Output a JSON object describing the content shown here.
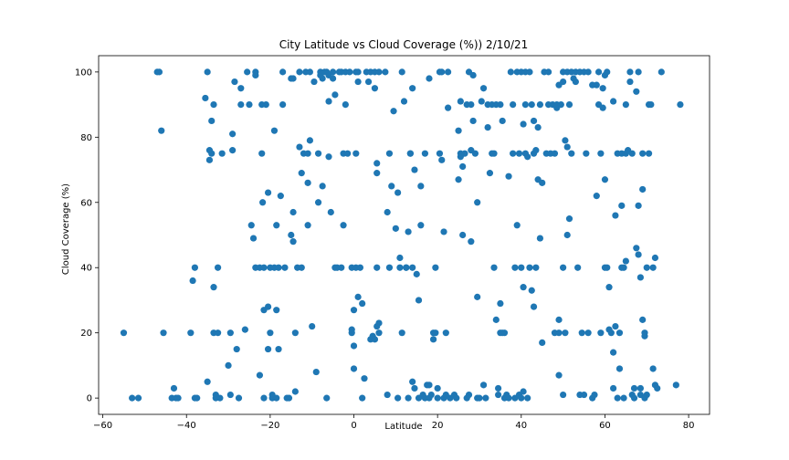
{
  "chart_data": {
    "type": "scatter",
    "title": "City Latitude vs Cloud Coverage (%)) 2/10/21",
    "xlabel": "Latitude",
    "ylabel": "Cloud Coverage (%)",
    "xlim": [
      -61,
      85
    ],
    "ylim": [
      -5,
      105
    ],
    "xticks": [
      -60,
      -40,
      -20,
      0,
      20,
      40,
      60,
      80
    ],
    "yticks": [
      0,
      20,
      40,
      60,
      80,
      100
    ],
    "grid": false,
    "legend": "none",
    "color": "#1f77b4",
    "points": [
      [
        -55,
        20
      ],
      [
        -53,
        0
      ],
      [
        -51.5,
        0
      ],
      [
        -47,
        100
      ],
      [
        -46.5,
        100
      ],
      [
        -46,
        82
      ],
      [
        -45.5,
        20
      ],
      [
        -43.5,
        0
      ],
      [
        -43,
        3
      ],
      [
        -42.5,
        0
      ],
      [
        -42,
        0
      ],
      [
        -39,
        20
      ],
      [
        -38.5,
        36
      ],
      [
        -38,
        40
      ],
      [
        -38,
        0
      ],
      [
        -37.5,
        0
      ],
      [
        -35.5,
        92
      ],
      [
        -35,
        5
      ],
      [
        -35,
        100
      ],
      [
        -34.5,
        76
      ],
      [
        -34.5,
        73
      ],
      [
        -34,
        85
      ],
      [
        -34,
        75
      ],
      [
        -33.5,
        90
      ],
      [
        -33.5,
        34
      ],
      [
        -33.5,
        20
      ],
      [
        -33,
        0
      ],
      [
        -33,
        1
      ],
      [
        -32.5,
        20
      ],
      [
        -32.5,
        40
      ],
      [
        -32,
        0
      ],
      [
        -31.5,
        75
      ],
      [
        -30,
        10
      ],
      [
        -29.5,
        1
      ],
      [
        -29.5,
        20
      ],
      [
        -29,
        76
      ],
      [
        -29,
        81
      ],
      [
        -28.5,
        97
      ],
      [
        -28,
        15
      ],
      [
        -27.5,
        0
      ],
      [
        -27,
        90
      ],
      [
        -27,
        95
      ],
      [
        -26,
        21
      ],
      [
        -25.5,
        100
      ],
      [
        -25,
        90
      ],
      [
        -24.5,
        53
      ],
      [
        -24,
        49
      ],
      [
        -23.5,
        100
      ],
      [
        -23.5,
        99
      ],
      [
        -23.5,
        40
      ],
      [
        -22.5,
        7
      ],
      [
        -22.5,
        40
      ],
      [
        -22,
        90
      ],
      [
        -22,
        75
      ],
      [
        -21.8,
        60
      ],
      [
        -21.5,
        27
      ],
      [
        -21.5,
        0
      ],
      [
        -21.5,
        40
      ],
      [
        -21,
        90
      ],
      [
        -20.5,
        15
      ],
      [
        -20.5,
        28
      ],
      [
        -20.5,
        63
      ],
      [
        -20,
        20
      ],
      [
        -20,
        40
      ],
      [
        -19.5,
        0
      ],
      [
        -19.5,
        1
      ],
      [
        -19,
        40
      ],
      [
        -19,
        82
      ],
      [
        -18.5,
        53
      ],
      [
        -18.5,
        27
      ],
      [
        -18.5,
        0
      ],
      [
        -18,
        40
      ],
      [
        -18,
        15
      ],
      [
        -17.5,
        62
      ],
      [
        -17,
        100
      ],
      [
        -17,
        90
      ],
      [
        -16.5,
        40
      ],
      [
        -16,
        0
      ],
      [
        -15.5,
        0
      ],
      [
        -15,
        50
      ],
      [
        -15,
        98
      ],
      [
        -14.5,
        48
      ],
      [
        -14.5,
        57
      ],
      [
        -14.5,
        98
      ],
      [
        -14,
        2
      ],
      [
        -14,
        20
      ],
      [
        -13.5,
        40
      ],
      [
        -13,
        77
      ],
      [
        -13,
        100
      ],
      [
        -12.5,
        69
      ],
      [
        -12.5,
        40
      ],
      [
        -12,
        75
      ],
      [
        -11.5,
        100
      ],
      [
        -11,
        75
      ],
      [
        -11,
        66
      ],
      [
        -11,
        53
      ],
      [
        -10.5,
        79
      ],
      [
        -10.5,
        100
      ],
      [
        -10,
        22
      ],
      [
        -9.5,
        97
      ],
      [
        -9,
        8
      ],
      [
        -8.5,
        60
      ],
      [
        -8.5,
        75
      ],
      [
        -8,
        100
      ],
      [
        -8,
        99
      ],
      [
        -7.5,
        98
      ],
      [
        -7.5,
        65
      ],
      [
        -7,
        100
      ],
      [
        -6.5,
        100
      ],
      [
        -6.5,
        0
      ],
      [
        -6,
        91
      ],
      [
        -6,
        74
      ],
      [
        -6,
        99
      ],
      [
        -5.5,
        57
      ],
      [
        -5,
        100
      ],
      [
        -5,
        98
      ],
      [
        -4.5,
        40
      ],
      [
        -4.5,
        93
      ],
      [
        -4,
        40
      ],
      [
        -3.5,
        100
      ],
      [
        -3,
        40
      ],
      [
        -3,
        100
      ],
      [
        -2.5,
        53
      ],
      [
        -2.5,
        75
      ],
      [
        -2,
        100
      ],
      [
        -2,
        90
      ],
      [
        -1.5,
        75
      ],
      [
        -1,
        100
      ],
      [
        -0.5,
        40
      ],
      [
        -0.5,
        21
      ],
      [
        -0.5,
        20
      ],
      [
        0,
        16
      ],
      [
        0,
        27
      ],
      [
        0,
        9
      ],
      [
        0.5,
        75
      ],
      [
        0.5,
        100
      ],
      [
        0.5,
        40
      ],
      [
        1,
        97
      ],
      [
        1,
        31
      ],
      [
        1,
        100
      ],
      [
        1.5,
        40
      ],
      [
        2,
        29
      ],
      [
        2,
        0
      ],
      [
        2.5,
        6
      ],
      [
        3,
        100
      ],
      [
        3.5,
        97
      ],
      [
        4,
        100
      ],
      [
        4,
        18
      ],
      [
        4.5,
        19
      ],
      [
        5,
        95
      ],
      [
        5,
        100
      ],
      [
        5,
        18
      ],
      [
        5.5,
        22
      ],
      [
        5.5,
        40
      ],
      [
        5.5,
        69
      ],
      [
        5.5,
        72
      ],
      [
        6,
        100
      ],
      [
        6,
        23
      ],
      [
        6,
        20
      ],
      [
        7.5,
        100
      ],
      [
        8,
        57
      ],
      [
        8,
        1
      ],
      [
        8.5,
        75
      ],
      [
        8.5,
        40
      ],
      [
        9,
        65
      ],
      [
        9.5,
        88
      ],
      [
        10,
        52
      ],
      [
        10.5,
        0
      ],
      [
        10.5,
        63
      ],
      [
        11,
        43
      ],
      [
        11,
        40
      ],
      [
        11.5,
        20
      ],
      [
        11.5,
        100
      ],
      [
        12,
        91
      ],
      [
        12.5,
        40
      ],
      [
        12.5,
        40
      ],
      [
        13,
        51
      ],
      [
        13,
        0
      ],
      [
        13.5,
        75
      ],
      [
        13.5,
        75
      ],
      [
        14,
        95
      ],
      [
        14,
        5
      ],
      [
        14,
        40
      ],
      [
        14.5,
        70
      ],
      [
        14.5,
        3
      ],
      [
        15,
        38
      ],
      [
        15.5,
        30
      ],
      [
        15.5,
        0
      ],
      [
        16,
        65
      ],
      [
        16,
        53
      ],
      [
        16.5,
        1
      ],
      [
        17,
        75
      ],
      [
        17,
        0
      ],
      [
        17.5,
        4
      ],
      [
        18,
        4
      ],
      [
        18,
        0
      ],
      [
        18,
        98
      ],
      [
        18.5,
        1
      ],
      [
        19,
        20
      ],
      [
        19,
        18
      ],
      [
        19.5,
        20
      ],
      [
        19.5,
        40
      ],
      [
        20,
        0
      ],
      [
        20,
        3
      ],
      [
        20.5,
        75
      ],
      [
        20.5,
        100
      ],
      [
        21,
        73
      ],
      [
        21,
        100
      ],
      [
        21.5,
        51
      ],
      [
        21.5,
        0
      ],
      [
        22,
        20
      ],
      [
        22,
        1
      ],
      [
        22.5,
        89
      ],
      [
        22.5,
        100
      ],
      [
        23,
        0
      ],
      [
        24,
        1
      ],
      [
        24.5,
        0
      ],
      [
        25,
        67
      ],
      [
        25,
        82
      ],
      [
        25.5,
        91
      ],
      [
        25.5,
        75
      ],
      [
        25.5,
        74
      ],
      [
        26,
        50
      ],
      [
        26,
        71
      ],
      [
        26.5,
        75
      ],
      [
        27,
        90
      ],
      [
        27,
        0
      ],
      [
        27.5,
        1
      ],
      [
        27.5,
        100
      ],
      [
        28,
        90
      ],
      [
        28,
        76
      ],
      [
        28,
        48
      ],
      [
        28.5,
        99
      ],
      [
        28.5,
        85
      ],
      [
        29,
        75
      ],
      [
        29.5,
        0
      ],
      [
        29.5,
        31
      ],
      [
        29.5,
        60
      ],
      [
        30,
        0
      ],
      [
        30.5,
        91
      ],
      [
        31,
        95
      ],
      [
        31,
        4
      ],
      [
        31.5,
        0
      ],
      [
        32,
        90
      ],
      [
        32,
        83
      ],
      [
        32.5,
        69
      ],
      [
        33,
        75
      ],
      [
        33,
        90
      ],
      [
        33.5,
        75
      ],
      [
        33.5,
        40
      ],
      [
        34,
        90
      ],
      [
        34,
        24
      ],
      [
        34.5,
        3
      ],
      [
        34.5,
        1
      ],
      [
        35,
        29
      ],
      [
        35,
        20
      ],
      [
        35,
        90
      ],
      [
        35.5,
        85
      ],
      [
        35.5,
        20
      ],
      [
        36,
        20
      ],
      [
        36,
        0
      ],
      [
        36.5,
        1
      ],
      [
        37,
        0
      ],
      [
        37,
        68
      ],
      [
        37.5,
        100
      ],
      [
        38,
        75
      ],
      [
        38,
        90
      ],
      [
        38.5,
        40
      ],
      [
        38.5,
        0
      ],
      [
        39,
        53
      ],
      [
        39,
        100
      ],
      [
        39.5,
        75
      ],
      [
        39.5,
        1
      ],
      [
        40,
        0
      ],
      [
        40,
        100
      ],
      [
        40,
        40
      ],
      [
        40.5,
        34
      ],
      [
        40.5,
        2
      ],
      [
        40.5,
        84
      ],
      [
        41,
        75
      ],
      [
        41,
        90
      ],
      [
        41,
        100
      ],
      [
        41.5,
        0
      ],
      [
        41.5,
        74
      ],
      [
        42,
        40
      ],
      [
        42,
        100
      ],
      [
        42.5,
        33
      ],
      [
        42.5,
        90
      ],
      [
        43,
        28
      ],
      [
        43,
        75
      ],
      [
        43,
        85
      ],
      [
        43.5,
        40
      ],
      [
        43.5,
        76
      ],
      [
        44,
        67
      ],
      [
        44,
        83
      ],
      [
        44.5,
        49
      ],
      [
        44.5,
        90
      ],
      [
        45,
        66
      ],
      [
        45,
        17
      ],
      [
        45.5,
        100
      ],
      [
        46,
        75
      ],
      [
        46.5,
        90
      ],
      [
        46.5,
        100
      ],
      [
        47,
        75
      ],
      [
        47.5,
        90
      ],
      [
        48,
        20
      ],
      [
        48,
        75
      ],
      [
        48.5,
        89
      ],
      [
        48.5,
        90
      ],
      [
        49,
        96
      ],
      [
        49,
        7
      ],
      [
        49,
        24
      ],
      [
        49,
        20
      ],
      [
        49.5,
        90
      ],
      [
        50,
        97
      ],
      [
        50,
        100
      ],
      [
        50,
        40
      ],
      [
        50,
        1
      ],
      [
        50.5,
        79
      ],
      [
        50.5,
        20
      ],
      [
        51,
        77
      ],
      [
        51,
        100
      ],
      [
        51,
        50
      ],
      [
        51.5,
        55
      ],
      [
        51.5,
        90
      ],
      [
        52,
        100
      ],
      [
        52,
        75
      ],
      [
        52.5,
        98
      ],
      [
        53,
        97
      ],
      [
        53,
        100
      ],
      [
        53.5,
        40
      ],
      [
        54,
        100
      ],
      [
        54,
        1
      ],
      [
        54.5,
        20
      ],
      [
        55,
        100
      ],
      [
        55,
        1
      ],
      [
        55.5,
        75
      ],
      [
        56,
        20
      ],
      [
        56,
        100
      ],
      [
        57,
        96
      ],
      [
        57,
        0
      ],
      [
        57.5,
        1
      ],
      [
        58,
        96
      ],
      [
        58,
        62
      ],
      [
        58.5,
        90
      ],
      [
        58.5,
        100
      ],
      [
        59,
        75
      ],
      [
        59,
        20
      ],
      [
        59.5,
        95
      ],
      [
        59.5,
        89
      ],
      [
        60,
        99
      ],
      [
        60,
        67
      ],
      [
        60,
        40
      ],
      [
        60.5,
        40
      ],
      [
        60.5,
        100
      ],
      [
        61,
        21
      ],
      [
        61,
        34
      ],
      [
        61.5,
        20
      ],
      [
        62,
        91
      ],
      [
        62,
        14
      ],
      [
        62,
        3
      ],
      [
        62.5,
        56
      ],
      [
        62.5,
        22
      ],
      [
        63,
        0
      ],
      [
        63,
        75
      ],
      [
        63.5,
        9
      ],
      [
        63.5,
        20
      ],
      [
        64,
        59
      ],
      [
        64,
        75
      ],
      [
        64,
        40
      ],
      [
        64.5,
        40
      ],
      [
        64.5,
        0
      ],
      [
        65,
        42
      ],
      [
        65,
        90
      ],
      [
        65,
        75
      ],
      [
        65.5,
        76
      ],
      [
        66,
        100
      ],
      [
        66,
        97
      ],
      [
        66.5,
        1
      ],
      [
        66.5,
        75
      ],
      [
        67,
        3
      ],
      [
        67,
        0
      ],
      [
        67.5,
        94
      ],
      [
        67.5,
        46
      ],
      [
        68,
        59
      ],
      [
        68,
        100
      ],
      [
        68,
        44
      ],
      [
        68.5,
        1
      ],
      [
        68.5,
        3
      ],
      [
        68.5,
        37
      ],
      [
        69,
        24
      ],
      [
        69,
        75
      ],
      [
        69,
        64
      ],
      [
        69.5,
        20
      ],
      [
        69.5,
        0
      ],
      [
        69.5,
        19
      ],
      [
        70,
        1
      ],
      [
        70,
        40
      ],
      [
        70.5,
        90
      ],
      [
        70.5,
        75
      ],
      [
        71,
        90
      ],
      [
        71.5,
        9
      ],
      [
        71.5,
        40
      ],
      [
        72,
        4
      ],
      [
        72,
        43
      ],
      [
        72.5,
        3
      ],
      [
        73.5,
        100
      ],
      [
        77,
        4
      ],
      [
        78,
        90
      ]
    ]
  }
}
